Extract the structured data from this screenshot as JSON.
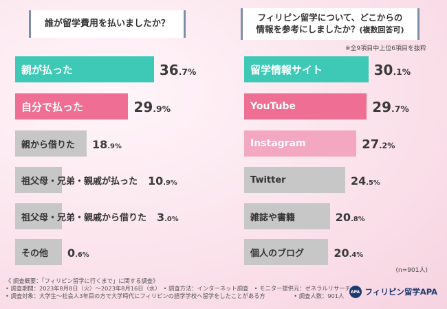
{
  "left_question": "誰が留学費用を払いましたか？",
  "right_question_line1": "フィリピン留学について、どこからの",
  "right_question_line2": "情報を参考にしましたか？",
  "right_question_sub": "(複数回答可)",
  "top_note": "※全9項目中上位6項目を抜粋",
  "sample_note": "(n=901人)",
  "colors": {
    "teal": "#3ec9b6",
    "pink": "#ef6e94",
    "light_pink": "#f4a7c0",
    "gray": "#c7c7c7"
  },
  "chart_data": [
    {
      "type": "bar",
      "orientation": "horizontal",
      "title": "誰が留学費用を払いましたか？",
      "unit": "%",
      "xlim": [
        0,
        50
      ],
      "categories": [
        "親が払った",
        "自分で払った",
        "親から借りた",
        "祖父母・兄弟・親戚が払った",
        "祖父母・兄弟・親戚から借りた",
        "その他"
      ],
      "values": [
        36.7,
        29.9,
        18.9,
        10.9,
        3.0,
        0.6
      ],
      "value_labels": [
        {
          "int": "36",
          "dec": ".7%"
        },
        {
          "int": "29",
          "dec": ".9%"
        },
        {
          "int": "18",
          "dec": ".9%"
        },
        {
          "int": "10",
          "dec": ".9%"
        },
        {
          "int": "3",
          "dec": ".0%"
        },
        {
          "int": "0",
          "dec": ".6%"
        }
      ],
      "colors": [
        "#3ec9b6",
        "#ef6e94",
        "#c7c7c7",
        "#c7c7c7",
        "#c7c7c7",
        "#c7c7c7"
      ]
    },
    {
      "type": "bar",
      "orientation": "horizontal",
      "title": "フィリピン留学について、どこからの情報を参考にしましたか？(複数回答可)",
      "unit": "%",
      "xlim": [
        0,
        40
      ],
      "categories": [
        "留学情報サイト",
        "YouTube",
        "Instagram",
        "Twitter",
        "雑誌や書籍",
        "個人のブログ"
      ],
      "values": [
        30.1,
        29.7,
        27.2,
        24.5,
        20.8,
        20.4
      ],
      "value_labels": [
        {
          "int": "30",
          "dec": ".1%"
        },
        {
          "int": "29",
          "dec": ".7%"
        },
        {
          "int": "27",
          "dec": ".2%"
        },
        {
          "int": "24",
          "dec": ".5%"
        },
        {
          "int": "20",
          "dec": ".8%"
        },
        {
          "int": "20",
          "dec": ".4%"
        }
      ],
      "colors": [
        "#3ec9b6",
        "#ef6e94",
        "#f4a7c0",
        "#c7c7c7",
        "#c7c7c7",
        "#c7c7c7"
      ]
    }
  ],
  "footer": {
    "line1": "《 調査概要：「フィリピン留学に行くまで」に関する調査》",
    "line2": "• 調査期間：2023年8月8日（火）～2023年8月16日（水）　• 調査方法：インターネット調査　• モニター提供元：ゼネラルリサーチ",
    "line3": "• 調査対象：大学生～社会人3年目の方で大学時代にフィリピンの語学学校へ留学をしたことがある方　　　　　• 調査人数：901人"
  },
  "brand": {
    "logo": "APA",
    "name": "フィリピン留学APA"
  }
}
